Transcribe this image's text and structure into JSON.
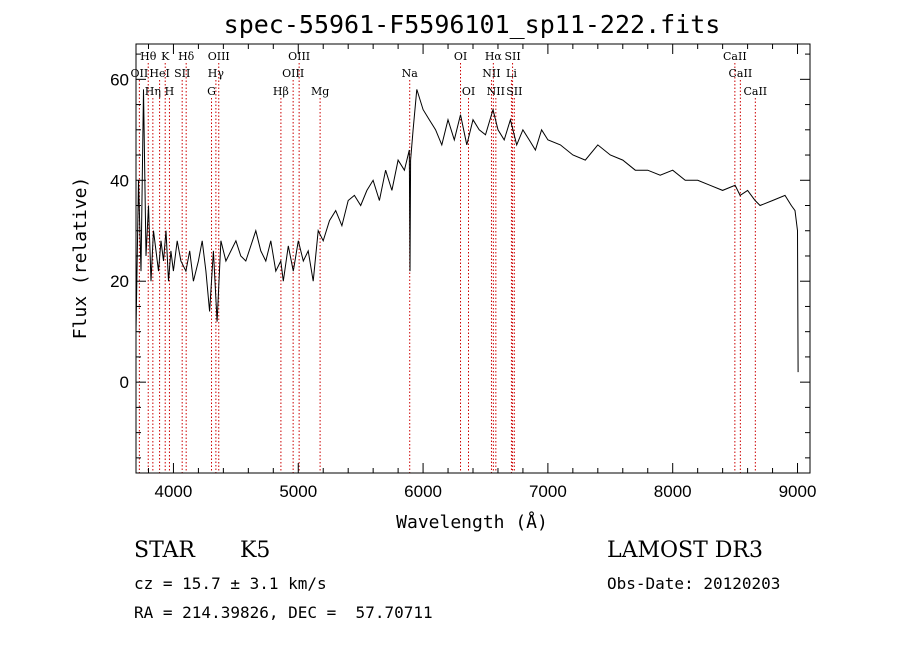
{
  "chart_data": {
    "type": "line",
    "title": "spec-55961-F5596101_sp11-222.fits",
    "xlabel": "Wavelength (Å)",
    "ylabel": "Flux (relative)",
    "xlim": [
      3700,
      9100
    ],
    "ylim": [
      -18,
      67
    ],
    "x_ticks": [
      4000,
      5000,
      6000,
      7000,
      8000,
      9000
    ],
    "y_ticks": [
      0,
      20,
      40,
      60
    ],
    "grid": false,
    "line_color": "#000000",
    "marker_color": "#cc0000",
    "series": [
      {
        "x": [
          3700,
          3720,
          3740,
          3760,
          3780,
          3800,
          3820,
          3840,
          3860,
          3880,
          3900,
          3920,
          3940,
          3960,
          3980,
          4000,
          4030,
          4060,
          4100,
          4130,
          4160,
          4200,
          4230,
          4260,
          4290,
          4320,
          4350,
          4380,
          4420,
          4460,
          4500,
          4540,
          4580,
          4620,
          4660,
          4700,
          4740,
          4780,
          4820,
          4860,
          4880,
          4920,
          4960,
          5000,
          5040,
          5080,
          5120,
          5160,
          5200,
          5250,
          5300,
          5350,
          5400,
          5450,
          5500,
          5550,
          5600,
          5650,
          5700,
          5750,
          5800,
          5850,
          5890,
          5895,
          5900,
          5920,
          5950,
          6000,
          6050,
          6100,
          6150,
          6200,
          6250,
          6300,
          6350,
          6400,
          6450,
          6500,
          6560,
          6600,
          6650,
          6700,
          6750,
          6800,
          6850,
          6900,
          6950,
          7000,
          7100,
          7200,
          7300,
          7400,
          7500,
          7600,
          7700,
          7800,
          7900,
          8000,
          8100,
          8200,
          8300,
          8400,
          8500,
          8540,
          8600,
          8660,
          8700,
          8800,
          8900,
          8950,
          8980,
          9000,
          9005
        ],
        "y": [
          10,
          40,
          22,
          58,
          25,
          35,
          20,
          30,
          26,
          22,
          28,
          24,
          30,
          20,
          26,
          22,
          28,
          24,
          22,
          26,
          20,
          24,
          28,
          22,
          14,
          26,
          12,
          28,
          24,
          26,
          28,
          25,
          24,
          27,
          30,
          26,
          24,
          28,
          22,
          24,
          20,
          27,
          22,
          28,
          24,
          26,
          20,
          30,
          28,
          32,
          34,
          31,
          36,
          37,
          35,
          38,
          40,
          36,
          42,
          38,
          44,
          42,
          46,
          22,
          44,
          50,
          58,
          54,
          52,
          50,
          47,
          52,
          48,
          53,
          47,
          52,
          50,
          49,
          54,
          50,
          48,
          52,
          47,
          50,
          48,
          46,
          50,
          48,
          47,
          45,
          44,
          47,
          45,
          44,
          42,
          42,
          41,
          42,
          40,
          40,
          39,
          38,
          39,
          37,
          38,
          36,
          35,
          36,
          37,
          35,
          34,
          30,
          2
        ]
      }
    ],
    "lines": [
      {
        "name": "Hθ",
        "x": 3798,
        "row": 0
      },
      {
        "name": "K",
        "x": 3934,
        "row": 0
      },
      {
        "name": "Hδ",
        "x": 4102,
        "row": 0
      },
      {
        "name": "OIII",
        "x": 4363,
        "row": 0
      },
      {
        "name": "OIII",
        "x": 5007,
        "row": 0
      },
      {
        "name": "OI",
        "x": 6300,
        "row": 0
      },
      {
        "name": "Hα",
        "x": 6563,
        "row": 0
      },
      {
        "name": "SII",
        "x": 6717,
        "row": 0
      },
      {
        "name": "CaII",
        "x": 8498,
        "row": 0
      },
      {
        "name": "OII",
        "x": 3727,
        "row": 1
      },
      {
        "name": "HeI",
        "x": 3889,
        "row": 1
      },
      {
        "name": "SII",
        "x": 4070,
        "row": 1
      },
      {
        "name": "Hγ",
        "x": 4340,
        "row": 1
      },
      {
        "name": "OIII",
        "x": 4959,
        "row": 1
      },
      {
        "name": "Na",
        "x": 5893,
        "row": 1
      },
      {
        "name": "NII",
        "x": 6548,
        "row": 1
      },
      {
        "name": "Li",
        "x": 6708,
        "row": 1
      },
      {
        "name": "CaII",
        "x": 8542,
        "row": 1
      },
      {
        "name": "Hη",
        "x": 3835,
        "row": 2
      },
      {
        "name": "H",
        "x": 3968,
        "row": 2
      },
      {
        "name": "G",
        "x": 4305,
        "row": 2
      },
      {
        "name": "Hβ",
        "x": 4861,
        "row": 2
      },
      {
        "name": "Mg",
        "x": 5175,
        "row": 2
      },
      {
        "name": "OI",
        "x": 6364,
        "row": 2
      },
      {
        "name": "NII",
        "x": 6583,
        "row": 2
      },
      {
        "name": "SII",
        "x": 6731,
        "row": 2
      },
      {
        "name": "CaII",
        "x": 8662,
        "row": 2
      }
    ]
  },
  "info": {
    "object_class": "STAR",
    "subclass": "K5",
    "survey": "LAMOST DR3",
    "cz": "cz = 15.7 ± 3.1 km/s",
    "obs_date": "Obs-Date: 20120203",
    "coords": "RA = 214.39826, DEC =  57.70711"
  }
}
